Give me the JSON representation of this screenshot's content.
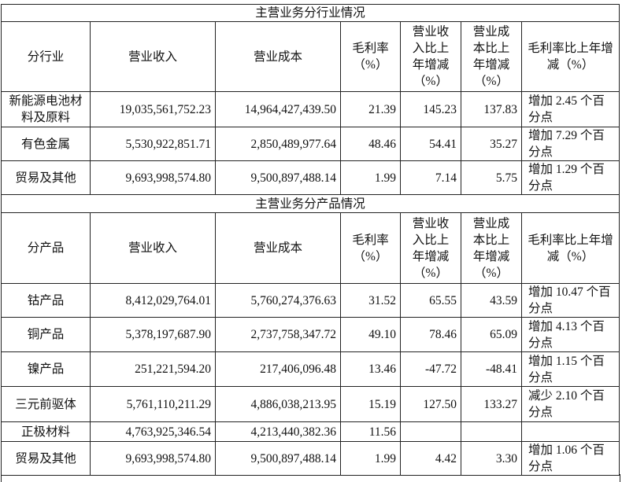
{
  "industry_section": {
    "title": "主营业务分行业情况",
    "headers": [
      "分行业",
      "营业收入",
      "营业成本",
      "毛利率（%）",
      "营业收入比上年增减（%）",
      "营业成本比上年增减（%）",
      "毛利率比上年增减（%）"
    ],
    "rows": [
      [
        "新能源电池材料及原料",
        "19,035,561,752.23",
        "14,964,427,439.50",
        "21.39",
        "145.23",
        "137.83",
        "增加 2.45 个百分点"
      ],
      [
        "有色金属",
        "5,530,922,851.71",
        "2,850,489,977.64",
        "48.46",
        "54.41",
        "35.27",
        "增加 7.29 个百分点"
      ],
      [
        "贸易及其他",
        "9,693,998,574.80",
        "9,500,897,488.14",
        "1.99",
        "7.14",
        "5.75",
        "增加 1.29 个百分点"
      ]
    ]
  },
  "product_section": {
    "title": "主营业务分产品情况",
    "headers": [
      "分产品",
      "营业收入",
      "营业成本",
      "毛利率（%）",
      "营业收入比上年增减（%）",
      "营业成本比上年增减（%）",
      "毛利率比上年增减（%）"
    ],
    "rows": [
      [
        "钴产品",
        "8,412,029,764.01",
        "5,760,274,376.63",
        "31.52",
        "65.55",
        "43.59",
        "增加 10.47 个百分点"
      ],
      [
        "铜产品",
        "5,378,197,687.90",
        "2,737,758,347.72",
        "49.10",
        "78.46",
        "65.09",
        "增加 4.13 个百分点"
      ],
      [
        "镍产品",
        "251,221,594.20",
        "217,406,096.48",
        "13.46",
        "-47.72",
        "-48.41",
        "增加 1.15 个百分点"
      ],
      [
        "三元前驱体",
        "5,761,110,211.29",
        "4,886,038,213.95",
        "15.19",
        "127.50",
        "133.27",
        "减少 2.10 个百分点"
      ],
      [
        "正极材料",
        "4,763,925,346.54",
        "4,213,440,382.36",
        "11.56",
        "",
        "",
        ""
      ],
      [
        "贸易及其他",
        "9,693,998,574.80",
        "9,500,897,488.14",
        "1.99",
        "4.42",
        "3.30",
        "增加 1.06 个百分点"
      ]
    ]
  }
}
